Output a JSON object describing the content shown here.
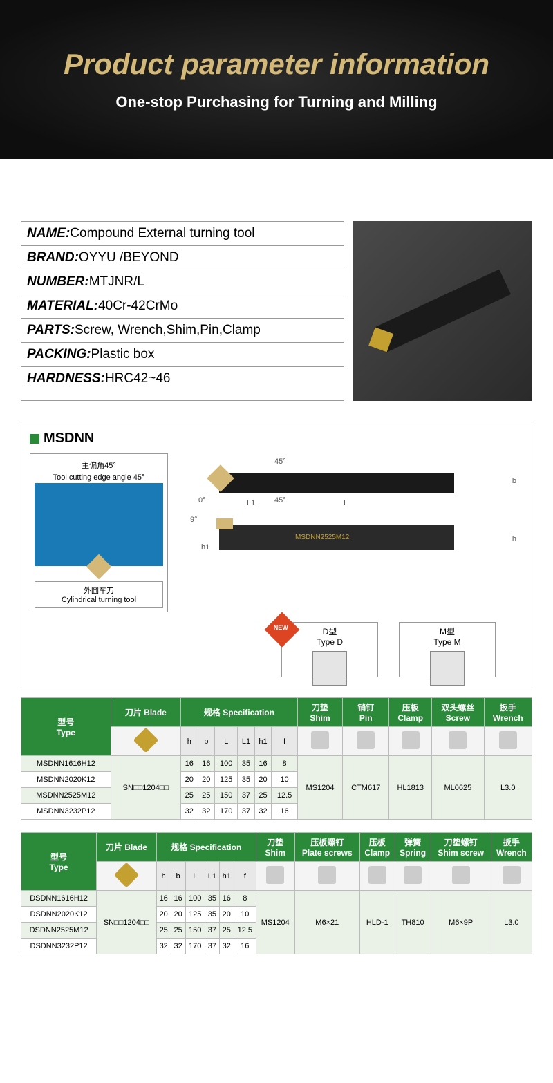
{
  "hero": {
    "title": "Product parameter information",
    "subtitle": "One-stop Purchasing for Turning and Milling"
  },
  "info": [
    {
      "label": "NAME:",
      "value": "Compound External turning tool"
    },
    {
      "label": "BRAND:",
      "value": "OYYU /BEYOND"
    },
    {
      "label": "NUMBER:",
      "value": "MTJNR/L"
    },
    {
      "label": "MATERIAL:",
      "value": "40Cr-42CrMo"
    },
    {
      "label": "PARTS:",
      "value": "Screw, Wrench,Shim,Pin,Clamp"
    },
    {
      "label": "PACKING:",
      "value": "Plastic  box"
    },
    {
      "label": "HARDNESS:",
      "value": "HRC42~46"
    }
  ],
  "model": "MSDNN",
  "diag": {
    "angle_cn": "主偏角45°",
    "angle_en": "Tool cutting edge angle 45°",
    "angle_mark": "45°",
    "type_cn": "外圆车刀",
    "type_en": "Cylindrical turning tool",
    "ann": {
      "top45": "45°",
      "bot45": "45°",
      "zero": "0°",
      "nine": "9°",
      "L": "L",
      "L1": "L1",
      "b": "b",
      "h": "h",
      "h1": "h1"
    }
  },
  "types": {
    "d_cn": "D型",
    "d_en": "Type D",
    "m_cn": "M型",
    "m_en": "Type M",
    "new": "NEW"
  },
  "t1": {
    "headers": {
      "type_cn": "型号",
      "type_en": "Type",
      "blade_cn": "刀片",
      "blade_en": "Blade",
      "spec_cn": "规格",
      "spec_en": "Specification",
      "shim_cn": "刀垫",
      "shim_en": "Shim",
      "pin_cn": "销钉",
      "pin_en": "Pin",
      "clamp_cn": "压板",
      "clamp_en": "Clamp",
      "screw_cn": "双头螺丝",
      "screw_en": "Screw",
      "wrench_cn": "扳手",
      "wrench_en": "Wrench"
    },
    "spec_cols": [
      "h",
      "b",
      "L",
      "L1",
      "h1",
      "f"
    ],
    "blade": "SN□□1204□□",
    "shim": "MS1204",
    "pin": "CTM617",
    "clamp": "HL1813",
    "screw": "ML0625",
    "wrench": "L3.0",
    "rows": [
      {
        "type": "MSDNN1616H12",
        "h": "16",
        "b": "16",
        "L": "100",
        "L1": "35",
        "h1": "16",
        "f": "8"
      },
      {
        "type": "MSDNN2020K12",
        "h": "20",
        "b": "20",
        "L": "125",
        "L1": "35",
        "h1": "20",
        "f": "10"
      },
      {
        "type": "MSDNN2525M12",
        "h": "25",
        "b": "25",
        "L": "150",
        "L1": "37",
        "h1": "25",
        "f": "12.5"
      },
      {
        "type": "MSDNN3232P12",
        "h": "32",
        "b": "32",
        "L": "170",
        "L1": "37",
        "h1": "32",
        "f": "16"
      }
    ]
  },
  "t2": {
    "headers": {
      "type_cn": "型号",
      "type_en": "Type",
      "blade_cn": "刀片",
      "blade_en": "Blade",
      "spec_cn": "规格",
      "spec_en": "Specification",
      "shim_cn": "刀垫",
      "shim_en": "Shim",
      "pscrew_cn": "压板螺钉",
      "pscrew_en": "Plate screws",
      "clamp_cn": "压板",
      "clamp_en": "Clamp",
      "spring_cn": "弹簧",
      "spring_en": "Spring",
      "sscrew_cn": "刀垫螺钉",
      "sscrew_en": "Shim screw",
      "wrench_cn": "扳手",
      "wrench_en": "Wrench"
    },
    "spec_cols": [
      "h",
      "b",
      "L",
      "L1",
      "h1",
      "f"
    ],
    "blade": "SN□□1204□□",
    "shim": "MS1204",
    "pscrew": "M6×21",
    "clamp": "HLD-1",
    "spring": "TH810",
    "sscrew": "M6×9P",
    "wrench": "L3.0",
    "rows": [
      {
        "type": "DSDNN1616H12",
        "h": "16",
        "b": "16",
        "L": "100",
        "L1": "35",
        "h1": "16",
        "f": "8"
      },
      {
        "type": "DSDNN2020K12",
        "h": "20",
        "b": "20",
        "L": "125",
        "L1": "35",
        "h1": "20",
        "f": "10"
      },
      {
        "type": "DSDNN2525M12",
        "h": "25",
        "b": "25",
        "L": "150",
        "L1": "37",
        "h1": "25",
        "f": "12.5"
      },
      {
        "type": "DSDNN3232P12",
        "h": "32",
        "b": "32",
        "L": "170",
        "L1": "37",
        "h1": "32",
        "f": "16"
      }
    ]
  }
}
